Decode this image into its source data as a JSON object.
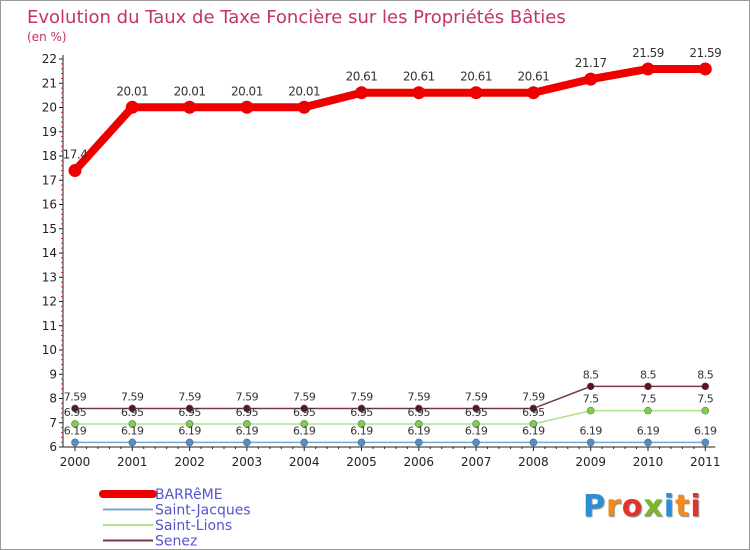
{
  "chart_data": {
    "type": "line",
    "title": "Evolution du Taux de Taxe Foncière sur les Propriétés Bâties",
    "subtitle": "(en %)",
    "xlabel": "",
    "ylabel": "",
    "x": [
      "2000",
      "2001",
      "2002",
      "2003",
      "2004",
      "2005",
      "2006",
      "2007",
      "2008",
      "2009",
      "2010",
      "2011"
    ],
    "y_ticks": [
      6,
      7,
      8,
      9,
      10,
      11,
      12,
      13,
      14,
      15,
      16,
      17,
      18,
      19,
      20,
      21,
      22
    ],
    "ylim": [
      6,
      22
    ],
    "grid": false,
    "legend_position": "bottom-left",
    "series": [
      {
        "name": "BARRêME",
        "color": "#ee0000",
        "values": [
          17.4,
          20.01,
          20.01,
          20.01,
          20.01,
          20.61,
          20.61,
          20.61,
          20.61,
          21.17,
          21.59,
          21.59
        ],
        "labels": [
          "17.4",
          "20.01",
          "20.01",
          "20.01",
          "20.01",
          "20.61",
          "20.61",
          "20.61",
          "20.61",
          "21.17",
          "21.59",
          "21.59"
        ]
      },
      {
        "name": "Saint-Jacques",
        "color": "#7aa6cc",
        "marker_color": "#4e8fcc",
        "values": [
          6.19,
          6.19,
          6.19,
          6.19,
          6.19,
          6.19,
          6.19,
          6.19,
          6.19,
          6.19,
          6.19,
          6.19
        ],
        "labels": [
          "6.19",
          "6.19",
          "6.19",
          "6.19",
          "6.19",
          "6.19",
          "6.19",
          "6.19",
          "6.19",
          "6.19",
          "6.19",
          "6.19"
        ]
      },
      {
        "name": "Saint-Lions",
        "color": "#aee38c",
        "marker_color": "#7ed04a",
        "values": [
          6.95,
          6.95,
          6.95,
          6.95,
          6.95,
          6.95,
          6.95,
          6.95,
          6.95,
          7.5,
          7.5,
          7.5
        ],
        "labels": [
          "6.95",
          "6.95",
          "6.95",
          "6.95",
          "6.95",
          "6.95",
          "6.95",
          "6.95",
          "6.95",
          "7.5",
          "7.5",
          "7.5"
        ]
      },
      {
        "name": "Senez",
        "color": "#7a3a44",
        "marker_color": "#5a1420",
        "values": [
          7.59,
          7.59,
          7.59,
          7.59,
          7.59,
          7.59,
          7.59,
          7.59,
          7.59,
          8.5,
          8.5,
          8.5
        ],
        "labels": [
          "7.59",
          "7.59",
          "7.59",
          "7.59",
          "7.59",
          "7.59",
          "7.59",
          "7.59",
          "7.59",
          "8.5",
          "8.5",
          "8.5"
        ]
      }
    ]
  },
  "logo": {
    "letters": [
      "P",
      "r",
      "o",
      "x",
      "i",
      "t",
      "i"
    ],
    "colors": [
      "#2a8fd6",
      "#f08a1c",
      "#e2332a",
      "#7ab829",
      "#2a8fd6",
      "#f08a1c",
      "#e2332a"
    ]
  },
  "colors": {
    "title": "#c2336e",
    "subtitle": "#c2336e",
    "axis": "#222222",
    "legend_text": "#5555cc",
    "label_text": "#333333"
  }
}
